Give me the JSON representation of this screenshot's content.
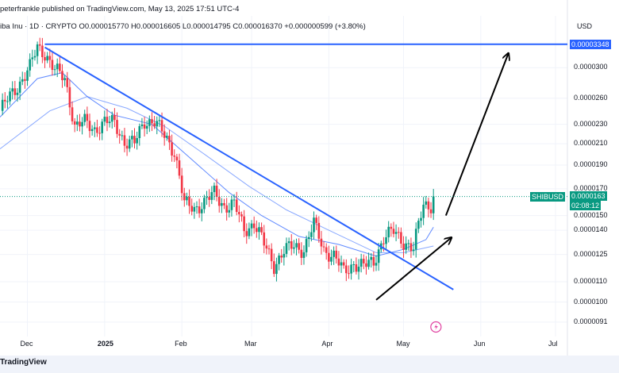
{
  "header": {
    "publisher_line": "peterfrankle published on TradingView.com, May 13, 2025 17:51 UTC-4",
    "symbol_line": "iba Inu · 1D · CRYPTO",
    "ohlc_line": "O0.000015770 H0.000016605 L0.000014795 C0.000016370 +0.000000599 (+3.80%)"
  },
  "currency_label": "USD",
  "price_tags": {
    "resistance": "0.00003348",
    "symbol": "SHIBUSD",
    "last_price": "0.0000163",
    "countdown": "02:08:12"
  },
  "footer": {
    "brand": "TradingView"
  },
  "colors": {
    "up": "#089981",
    "down": "#f23645",
    "trendline": "#2962ff",
    "ma_fast": "#2962ff",
    "ma_slow": "#2962ff",
    "arrow": "#000000",
    "tag_bg": "#2962ff"
  },
  "chart_data": {
    "type": "candlestick",
    "symbol": "SHIBUSD",
    "interval": "1D",
    "x_ticks": [
      "Dec",
      "2025",
      "Feb",
      "Mar",
      "Apr",
      "May",
      "Jun",
      "Jul"
    ],
    "y_scale": "log",
    "y_ticks": [
      "0.0000300",
      "0.0000260",
      "0.0000230",
      "0.0000210",
      "0.0000190",
      "0.0000170",
      "0.0000150",
      "0.0000140",
      "0.0000125",
      "0.0000110",
      "0.0000100",
      "0.0000091"
    ],
    "y_tick_values": [
      3e-05,
      2.6e-05,
      2.3e-05,
      2.1e-05,
      1.9e-05,
      1.7e-05,
      1.5e-05,
      1.4e-05,
      1.25e-05,
      1.1e-05,
      1e-05,
      9.1e-06
    ],
    "ylim": [
      8.7e-06,
      3.55e-05
    ],
    "series": [
      {
        "name": "SHIBUSD",
        "kind": "close",
        "points": [
          [
            "2024-11-20",
            2.45e-05
          ],
          [
            "2024-11-24",
            2.62e-05
          ],
          [
            "2024-11-28",
            2.8e-05
          ],
          [
            "2024-12-02",
            3e-05
          ],
          [
            "2024-12-05",
            3.3e-05
          ],
          [
            "2024-12-08",
            3.22e-05
          ],
          [
            "2024-12-12",
            2.96e-05
          ],
          [
            "2024-12-16",
            2.85e-05
          ],
          [
            "2024-12-20",
            2.28e-05
          ],
          [
            "2024-12-24",
            2.32e-05
          ],
          [
            "2024-12-28",
            2.25e-05
          ],
          [
            "2025-01-01",
            2.32e-05
          ],
          [
            "2025-01-05",
            2.32e-05
          ],
          [
            "2025-01-09",
            2.12e-05
          ],
          [
            "2025-01-13",
            2.1e-05
          ],
          [
            "2025-01-17",
            2.34e-05
          ],
          [
            "2025-01-21",
            2.33e-05
          ],
          [
            "2025-01-25",
            2.18e-05
          ],
          [
            "2025-01-29",
            2.03e-05
          ],
          [
            "2025-02-02",
            1.58e-05
          ],
          [
            "2025-02-06",
            1.55e-05
          ],
          [
            "2025-02-10",
            1.6e-05
          ],
          [
            "2025-02-14",
            1.66e-05
          ],
          [
            "2025-02-18",
            1.57e-05
          ],
          [
            "2025-02-22",
            1.58e-05
          ],
          [
            "2025-02-26",
            1.4e-05
          ],
          [
            "2025-03-02",
            1.45e-05
          ],
          [
            "2025-03-06",
            1.31e-05
          ],
          [
            "2025-03-10",
            1.19e-05
          ],
          [
            "2025-03-14",
            1.27e-05
          ],
          [
            "2025-03-18",
            1.3e-05
          ],
          [
            "2025-03-22",
            1.28e-05
          ],
          [
            "2025-03-26",
            1.44e-05
          ],
          [
            "2025-03-30",
            1.28e-05
          ],
          [
            "2025-04-03",
            1.24e-05
          ],
          [
            "2025-04-07",
            1.15e-05
          ],
          [
            "2025-04-11",
            1.2e-05
          ],
          [
            "2025-04-15",
            1.18e-05
          ],
          [
            "2025-04-19",
            1.21e-05
          ],
          [
            "2025-04-23",
            1.35e-05
          ],
          [
            "2025-04-27",
            1.39e-05
          ],
          [
            "2025-05-01",
            1.33e-05
          ],
          [
            "2025-05-05",
            1.28e-05
          ],
          [
            "2025-05-09",
            1.58e-05
          ],
          [
            "2025-05-12",
            1.58e-05
          ],
          [
            "2025-05-13",
            1.64e-05
          ]
        ]
      },
      {
        "name": "",
        "kind": "moving-average-fast",
        "points": [
          [
            "2024-11-20",
            2.38e-05
          ],
          [
            "2024-12-05",
            2.85e-05
          ],
          [
            "2024-12-15",
            2.93e-05
          ],
          [
            "2024-12-25",
            2.62e-05
          ],
          [
            "2025-01-05",
            2.4e-05
          ],
          [
            "2025-01-20",
            2.3e-05
          ],
          [
            "2025-02-05",
            1.95e-05
          ],
          [
            "2025-02-20",
            1.67e-05
          ],
          [
            "2025-03-05",
            1.5e-05
          ],
          [
            "2025-03-20",
            1.36e-05
          ],
          [
            "2025-04-05",
            1.31e-05
          ],
          [
            "2025-04-20",
            1.24e-05
          ],
          [
            "2025-05-01",
            1.28e-05
          ],
          [
            "2025-05-10",
            1.34e-05
          ],
          [
            "2025-05-13",
            1.42e-05
          ]
        ]
      },
      {
        "name": "",
        "kind": "moving-average-slow",
        "points": [
          [
            "2024-11-20",
            2.05e-05
          ],
          [
            "2024-12-10",
            2.45e-05
          ],
          [
            "2024-12-25",
            2.62e-05
          ],
          [
            "2025-01-10",
            2.48e-05
          ],
          [
            "2025-01-25",
            2.28e-05
          ],
          [
            "2025-02-10",
            2e-05
          ],
          [
            "2025-02-28",
            1.72e-05
          ],
          [
            "2025-03-15",
            1.54e-05
          ],
          [
            "2025-04-01",
            1.4e-05
          ],
          [
            "2025-04-20",
            1.26e-05
          ],
          [
            "2025-05-01",
            1.26e-05
          ],
          [
            "2025-05-13",
            1.3e-05
          ]
        ]
      }
    ],
    "drawings": [
      {
        "kind": "horizontal-line",
        "y": 3.348e-05,
        "label": "0.00003348"
      },
      {
        "kind": "trendline",
        "from": [
          "2024-12-08",
          3.3e-05
        ],
        "to": [
          "2025-05-21",
          1.06e-05
        ]
      },
      {
        "kind": "arrow",
        "from": [
          "2025-04-20",
          1.01e-05
        ],
        "to": [
          "2025-05-20",
          1.35e-05
        ]
      },
      {
        "kind": "arrow",
        "from": [
          "2025-05-18",
          1.5e-05
        ],
        "to": [
          "2025-06-12",
          3.2e-05
        ]
      }
    ]
  }
}
